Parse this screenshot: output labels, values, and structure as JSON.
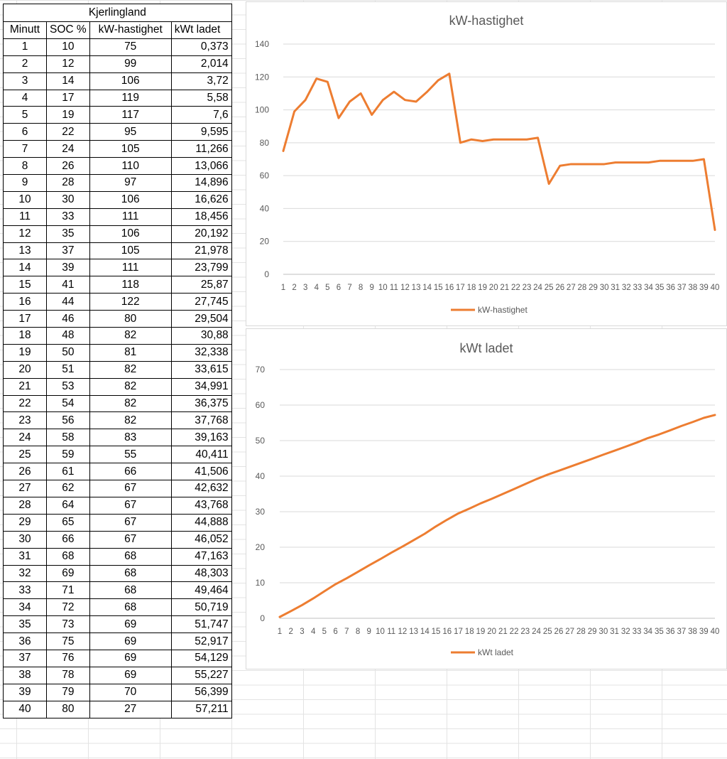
{
  "table": {
    "title": "Kjerlingland",
    "headers": [
      "Minutt",
      "SOC %",
      "kW-hastighet",
      "kWt ladet"
    ],
    "rows": [
      [
        "1",
        "10",
        "75",
        "0,373"
      ],
      [
        "2",
        "12",
        "99",
        "2,014"
      ],
      [
        "3",
        "14",
        "106",
        "3,72"
      ],
      [
        "4",
        "17",
        "119",
        "5,58"
      ],
      [
        "5",
        "19",
        "117",
        "7,6"
      ],
      [
        "6",
        "22",
        "95",
        "9,595"
      ],
      [
        "7",
        "24",
        "105",
        "11,266"
      ],
      [
        "8",
        "26",
        "110",
        "13,066"
      ],
      [
        "9",
        "28",
        "97",
        "14,896"
      ],
      [
        "10",
        "30",
        "106",
        "16,626"
      ],
      [
        "11",
        "33",
        "111",
        "18,456"
      ],
      [
        "12",
        "35",
        "106",
        "20,192"
      ],
      [
        "13",
        "37",
        "105",
        "21,978"
      ],
      [
        "14",
        "39",
        "111",
        "23,799"
      ],
      [
        "15",
        "41",
        "118",
        "25,87"
      ],
      [
        "16",
        "44",
        "122",
        "27,745"
      ],
      [
        "17",
        "46",
        "80",
        "29,504"
      ],
      [
        "18",
        "48",
        "82",
        "30,88"
      ],
      [
        "19",
        "50",
        "81",
        "32,338"
      ],
      [
        "20",
        "51",
        "82",
        "33,615"
      ],
      [
        "21",
        "53",
        "82",
        "34,991"
      ],
      [
        "22",
        "54",
        "82",
        "36,375"
      ],
      [
        "23",
        "56",
        "82",
        "37,768"
      ],
      [
        "24",
        "58",
        "83",
        "39,163"
      ],
      [
        "25",
        "59",
        "55",
        "40,411"
      ],
      [
        "26",
        "61",
        "66",
        "41,506"
      ],
      [
        "27",
        "62",
        "67",
        "42,632"
      ],
      [
        "28",
        "64",
        "67",
        "43,768"
      ],
      [
        "29",
        "65",
        "67",
        "44,888"
      ],
      [
        "30",
        "66",
        "67",
        "46,052"
      ],
      [
        "31",
        "68",
        "68",
        "47,163"
      ],
      [
        "32",
        "69",
        "68",
        "48,303"
      ],
      [
        "33",
        "71",
        "68",
        "49,464"
      ],
      [
        "34",
        "72",
        "68",
        "50,719"
      ],
      [
        "35",
        "73",
        "69",
        "51,747"
      ],
      [
        "36",
        "75",
        "69",
        "52,917"
      ],
      [
        "37",
        "76",
        "69",
        "54,129"
      ],
      [
        "38",
        "78",
        "69",
        "55,227"
      ],
      [
        "39",
        "79",
        "70",
        "56,399"
      ],
      [
        "40",
        "80",
        "27",
        "57,211"
      ]
    ]
  },
  "chart_data": [
    {
      "type": "line",
      "title": "kW-hastighet",
      "xlabel": "",
      "ylabel": "",
      "x": [
        1,
        2,
        3,
        4,
        5,
        6,
        7,
        8,
        9,
        10,
        11,
        12,
        13,
        14,
        15,
        16,
        17,
        18,
        19,
        20,
        21,
        22,
        23,
        24,
        25,
        26,
        27,
        28,
        29,
        30,
        31,
        32,
        33,
        34,
        35,
        36,
        37,
        38,
        39,
        40
      ],
      "series": [
        {
          "name": "kW-hastighet",
          "color": "#ED7D31",
          "values": [
            75,
            99,
            106,
            119,
            117,
            95,
            105,
            110,
            97,
            106,
            111,
            106,
            105,
            111,
            118,
            122,
            80,
            82,
            81,
            82,
            82,
            82,
            82,
            83,
            55,
            66,
            67,
            67,
            67,
            67,
            68,
            68,
            68,
            68,
            69,
            69,
            69,
            69,
            70,
            27
          ]
        }
      ],
      "ylim": [
        0,
        140
      ],
      "yticks": [
        0,
        20,
        40,
        60,
        80,
        100,
        120,
        140
      ],
      "grid": true,
      "legend": "bottom"
    },
    {
      "type": "line",
      "title": "kWt ladet",
      "xlabel": "",
      "ylabel": "",
      "x": [
        1,
        2,
        3,
        4,
        5,
        6,
        7,
        8,
        9,
        10,
        11,
        12,
        13,
        14,
        15,
        16,
        17,
        18,
        19,
        20,
        21,
        22,
        23,
        24,
        25,
        26,
        27,
        28,
        29,
        30,
        31,
        32,
        33,
        34,
        35,
        36,
        37,
        38,
        39,
        40
      ],
      "series": [
        {
          "name": "kWt ladet",
          "color": "#ED7D31",
          "values": [
            0.373,
            2.014,
            3.72,
            5.58,
            7.6,
            9.595,
            11.266,
            13.066,
            14.896,
            16.626,
            18.456,
            20.192,
            21.978,
            23.799,
            25.87,
            27.745,
            29.504,
            30.88,
            32.338,
            33.615,
            34.991,
            36.375,
            37.768,
            39.163,
            40.411,
            41.506,
            42.632,
            43.768,
            44.888,
            46.052,
            47.163,
            48.303,
            49.464,
            50.719,
            51.747,
            52.917,
            54.129,
            55.227,
            56.399,
            57.211
          ]
        }
      ],
      "ylim": [
        0,
        70
      ],
      "yticks": [
        0,
        10,
        20,
        30,
        40,
        50,
        60,
        70
      ],
      "grid": true,
      "legend": "bottom"
    }
  ]
}
